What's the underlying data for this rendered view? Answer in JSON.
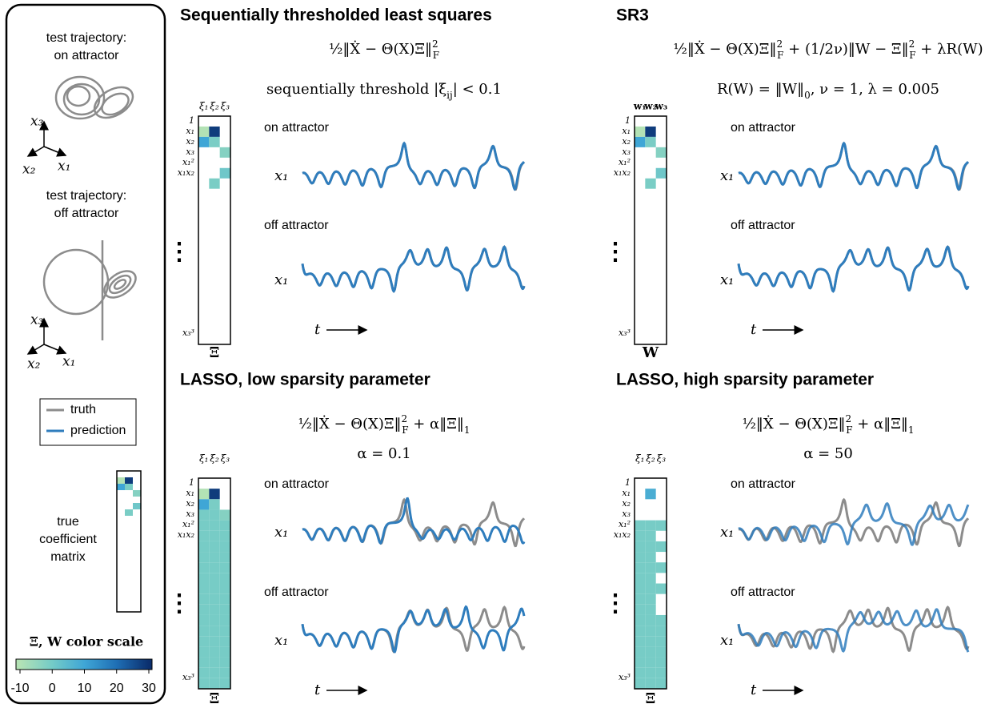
{
  "sidebar": {
    "on_title": [
      "test trajectory:",
      "on attractor"
    ],
    "off_title": [
      "test trajectory:",
      "off attractor"
    ],
    "axes": [
      "x₃",
      "x₂",
      "x₁"
    ],
    "legend": [
      {
        "name": "truth",
        "color": "#8c8c8c"
      },
      {
        "name": "prediction",
        "color": "#2f7dbd"
      }
    ],
    "true_matrix_label": [
      "true",
      "coefficient",
      "matrix"
    ],
    "true_matrix": [
      [
        null,
        null,
        null
      ],
      [
        -10,
        28,
        null
      ],
      [
        10,
        -1,
        null
      ],
      [
        null,
        null,
        -2.67
      ],
      [
        null,
        null,
        null
      ],
      [
        null,
        null,
        1
      ],
      [
        null,
        -1,
        null
      ],
      [
        null,
        null,
        null
      ],
      [
        null,
        null,
        null
      ],
      [
        null,
        null,
        null
      ],
      [
        null,
        null,
        null
      ],
      [
        null,
        null,
        null
      ],
      [
        null,
        null,
        null
      ],
      [
        null,
        null,
        null
      ],
      [
        null,
        null,
        null
      ],
      [
        null,
        null,
        null
      ],
      [
        null,
        null,
        null
      ],
      [
        null,
        null,
        null
      ],
      [
        null,
        null,
        null
      ],
      [
        null,
        null,
        null
      ],
      [
        null,
        null,
        null
      ],
      [
        null,
        null,
        null
      ]
    ],
    "color_scale": {
      "label": "Ξ, W color scale",
      "ticks": [
        -10,
        0,
        10,
        20,
        30
      ],
      "colors": [
        "#b3e2b5",
        "#74cbc7",
        "#3fa6d6",
        "#1f6fb5",
        "#0b2f6e"
      ]
    }
  },
  "panels": [
    {
      "title": "Sequentially thresholded least squares",
      "formula": [
        [
          {
            "t": "½‖Ẋ − Θ(X)Ξ‖"
          },
          {
            "sup": "2"
          },
          {
            "sub": "F"
          }
        ],
        [
          {
            "t": "sequentially threshold |ξ"
          },
          {
            "sub": "ij"
          },
          {
            "t": "| < 0.1"
          }
        ]
      ],
      "col_labels": [
        "ξ₁",
        "ξ₂",
        "ξ₃"
      ],
      "row_labels": [
        "1",
        "x₁",
        "x₂",
        "x₃",
        "x₁²",
        "x₁x₂",
        "⋮",
        "x₃³"
      ],
      "matrix_label": "Ξ",
      "on_label": "on attractor",
      "off_label": "off attractor",
      "var_label": "x₁",
      "time_label": "t",
      "matrix": [
        [
          null,
          null,
          null
        ],
        [
          -10,
          28,
          null
        ],
        [
          10,
          -1,
          null
        ],
        [
          null,
          null,
          -2.67
        ],
        [
          null,
          null,
          null
        ],
        [
          null,
          null,
          1
        ],
        [
          null,
          -1,
          null
        ],
        [
          null,
          null,
          null
        ],
        [
          null,
          null,
          null
        ],
        [
          null,
          null,
          null
        ],
        [
          null,
          null,
          null
        ],
        [
          null,
          null,
          null
        ],
        [
          null,
          null,
          null
        ],
        [
          null,
          null,
          null
        ],
        [
          null,
          null,
          null
        ],
        [
          null,
          null,
          null
        ],
        [
          null,
          null,
          null
        ],
        [
          null,
          null,
          null
        ],
        [
          null,
          null,
          null
        ],
        [
          null,
          null,
          null
        ],
        [
          null,
          null,
          null
        ],
        [
          null,
          null,
          null
        ]
      ]
    },
    {
      "title": "SR3",
      "formula": [
        [
          {
            "t": "½‖Ẋ − Θ(X)Ξ‖"
          },
          {
            "sup": "2"
          },
          {
            "sub": "F"
          },
          {
            "t": " + (1/2ν)‖W − Ξ‖"
          },
          {
            "sup": "2"
          },
          {
            "sub": "F"
          },
          {
            "t": " + λR(W)"
          }
        ],
        [
          {
            "t": "R(W) = ‖W‖"
          },
          {
            "sub": "0"
          },
          {
            "t": ", ν = 1, λ = 0.005"
          }
        ]
      ],
      "col_labels": [
        "w₁",
        "w₂",
        "w₃"
      ],
      "row_labels": [
        "1",
        "x₁",
        "x₂",
        "x₃",
        "x₁²",
        "x₁x₂",
        "⋮",
        "x₃³"
      ],
      "matrix_label": "W",
      "on_label": "on attractor",
      "off_label": "off attractor",
      "var_label": "x₁",
      "time_label": "t",
      "matrix": [
        [
          null,
          null,
          null
        ],
        [
          -10,
          28,
          null
        ],
        [
          10,
          -1,
          null
        ],
        [
          null,
          null,
          -2.67
        ],
        [
          null,
          null,
          null
        ],
        [
          null,
          null,
          1
        ],
        [
          null,
          -1,
          null
        ],
        [
          null,
          null,
          null
        ],
        [
          null,
          null,
          null
        ],
        [
          null,
          null,
          null
        ],
        [
          null,
          null,
          null
        ],
        [
          null,
          null,
          null
        ],
        [
          null,
          null,
          null
        ],
        [
          null,
          null,
          null
        ],
        [
          null,
          null,
          null
        ],
        [
          null,
          null,
          null
        ],
        [
          null,
          null,
          null
        ],
        [
          null,
          null,
          null
        ],
        [
          null,
          null,
          null
        ],
        [
          null,
          null,
          null
        ],
        [
          null,
          null,
          null
        ],
        [
          null,
          null,
          null
        ]
      ]
    },
    {
      "title": "LASSO, low sparsity parameter",
      "formula": [
        [
          {
            "t": "½‖Ẋ − Θ(X)Ξ‖"
          },
          {
            "sup": "2"
          },
          {
            "sub": "F"
          },
          {
            "t": " + α‖Ξ‖"
          },
          {
            "sub": "1"
          }
        ],
        [
          {
            "t": "α = 0.1"
          }
        ]
      ],
      "col_labels": [
        "ξ₁",
        "ξ₂",
        "ξ₃"
      ],
      "row_labels": [
        "1",
        "x₁",
        "x₂",
        "x₃",
        "x₁²",
        "x₁x₂",
        "⋮",
        "x₃³"
      ],
      "matrix_label": "Ξ",
      "on_label": "on attractor",
      "off_label": "off attractor",
      "var_label": "x₁",
      "time_label": "t",
      "matrix": [
        [
          null,
          null,
          null
        ],
        [
          -10,
          28,
          null
        ],
        [
          10,
          -1,
          null
        ],
        [
          -0.5,
          -0.5,
          -2.67
        ],
        [
          -0.5,
          -0.5,
          -0.5
        ],
        [
          -0.5,
          -0.5,
          -0.5
        ],
        [
          -0.5,
          -0.5,
          -0.5
        ],
        [
          -0.5,
          -0.5,
          -0.5
        ],
        [
          -0.5,
          -0.5,
          -0.5
        ],
        [
          -0.5,
          -0.5,
          -0.5
        ],
        [
          -0.5,
          -0.5,
          -0.5
        ],
        [
          -0.5,
          -0.5,
          -0.5
        ],
        [
          -0.5,
          -0.5,
          -0.5
        ],
        [
          -0.5,
          -0.5,
          -0.5
        ],
        [
          -0.5,
          -0.5,
          -0.5
        ],
        [
          -0.5,
          -0.5,
          -0.5
        ],
        [
          -0.5,
          -0.5,
          -0.5
        ],
        [
          -0.5,
          -0.5,
          -0.5
        ],
        [
          -0.5,
          -0.5,
          -0.5
        ],
        [
          -0.5,
          -0.5,
          -0.5
        ]
      ]
    },
    {
      "title": "LASSO, high sparsity parameter",
      "formula": [
        [
          {
            "t": "½‖Ẋ − Θ(X)Ξ‖"
          },
          {
            "sup": "2"
          },
          {
            "sub": "F"
          },
          {
            "t": " + α‖Ξ‖"
          },
          {
            "sub": "1"
          }
        ],
        [
          {
            "t": "α = 50"
          }
        ]
      ],
      "col_labels": [
        "ξ₁",
        "ξ₂",
        "ξ₃"
      ],
      "row_labels": [
        "1",
        "x₁",
        "x₂",
        "x₃",
        "x₁²",
        "x₁x₂",
        "⋮",
        "x₃³"
      ],
      "matrix_label": "Ξ",
      "on_label": "on attractor",
      "off_label": "off attractor",
      "var_label": "x₁",
      "time_label": "t",
      "matrix": [
        [
          null,
          null,
          null
        ],
        [
          null,
          8,
          null
        ],
        [
          null,
          null,
          null
        ],
        [
          null,
          null,
          null
        ],
        [
          -0.5,
          -0.5,
          -0.5
        ],
        [
          -0.5,
          -0.5,
          null
        ],
        [
          -0.5,
          -0.5,
          -0.5
        ],
        [
          -0.5,
          -0.5,
          null
        ],
        [
          -0.5,
          -0.5,
          -0.5
        ],
        [
          -0.5,
          -0.5,
          null
        ],
        [
          -0.5,
          -0.5,
          -0.5
        ],
        [
          -0.5,
          -0.5,
          null
        ],
        [
          -0.5,
          -0.5,
          null
        ],
        [
          -0.5,
          -0.5,
          -0.5
        ],
        [
          -0.5,
          -0.5,
          -0.5
        ],
        [
          -0.5,
          -0.5,
          -0.5
        ],
        [
          -0.5,
          -0.5,
          -0.5
        ],
        [
          -0.5,
          -0.5,
          -0.5
        ],
        [
          -0.5,
          -0.5,
          -0.5
        ],
        [
          -0.5,
          -0.5,
          -0.5
        ]
      ]
    }
  ]
}
